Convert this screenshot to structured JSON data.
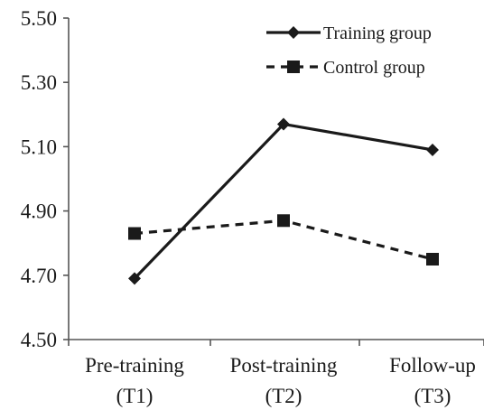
{
  "chart_data": {
    "type": "line",
    "categories": [
      [
        "Pre-training",
        "(T1)"
      ],
      [
        "Post-training",
        "(T2)"
      ],
      [
        "Follow-up",
        "(T3)"
      ]
    ],
    "yticks": [
      "4.50",
      "4.70",
      "4.90",
      "5.10",
      "5.30",
      "5.50"
    ],
    "ylim": [
      4.5,
      5.5
    ],
    "grid": false,
    "legend_position": "top-right",
    "series": [
      {
        "name": "Training group",
        "values": [
          4.69,
          5.17,
          5.09
        ],
        "marker": "diamond",
        "line": "solid",
        "color": "#1a1a1a"
      },
      {
        "name": "Control group",
        "values": [
          4.83,
          4.87,
          4.75
        ],
        "marker": "square",
        "line": "dashed",
        "color": "#1a1a1a"
      }
    ]
  }
}
